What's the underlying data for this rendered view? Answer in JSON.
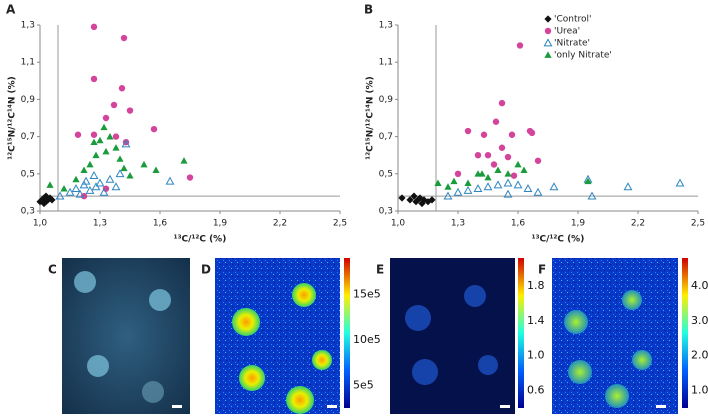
{
  "chart_data": [
    {
      "type": "scatter",
      "panel": "A",
      "xlabel": "¹³C/¹²C (%)",
      "ylabel": "¹²C¹⁵N/¹²C¹⁴N (%)",
      "xlim": [
        1.0,
        2.5
      ],
      "ylim": [
        0.3,
        1.3
      ],
      "xticks": [
        {
          "value": 1.0,
          "label": "1,0"
        },
        {
          "value": 1.3,
          "label": "1,3"
        },
        {
          "value": 1.6,
          "label": "1,6"
        },
        {
          "value": 1.9,
          "label": "1,9"
        },
        {
          "value": 2.2,
          "label": "2,2"
        },
        {
          "value": 2.5,
          "label": "2,5"
        }
      ],
      "yticks": [
        {
          "value": 0.3,
          "label": "0,3"
        },
        {
          "value": 0.5,
          "label": "0,5"
        },
        {
          "value": 0.7,
          "label": "0,7"
        },
        {
          "value": 0.9,
          "label": "0,9"
        },
        {
          "value": 1.1,
          "label": "1,1"
        },
        {
          "value": 1.3,
          "label": "1,3"
        }
      ],
      "vlines": [
        1.09
      ],
      "hlines": [
        0.38
      ],
      "series": [
        {
          "marker": "diamond",
          "color": "#111111",
          "x": [
            1.01,
            1.02,
            1.03,
            1.04,
            1.05,
            1.02,
            1.06,
            1.03,
            1.0
          ],
          "y": [
            0.36,
            0.37,
            0.35,
            0.36,
            0.37,
            0.34,
            0.36,
            0.38,
            0.35
          ]
        },
        {
          "marker": "circle",
          "color": "#d4449a",
          "x": [
            1.27,
            1.42,
            1.27,
            1.41,
            1.37,
            1.45,
            1.33,
            1.19,
            1.27,
            1.38,
            1.57,
            1.43,
            1.75,
            1.22,
            1.33
          ],
          "y": [
            1.29,
            1.23,
            1.01,
            0.96,
            0.87,
            0.84,
            0.8,
            0.71,
            0.71,
            0.7,
            0.74,
            0.67,
            0.48,
            0.38,
            0.42
          ]
        },
        {
          "marker": "triangle-open",
          "color": "#2e86c1",
          "x": [
            1.1,
            1.15,
            1.18,
            1.2,
            1.22,
            1.25,
            1.28,
            1.3,
            1.32,
            1.35,
            1.38,
            1.4,
            1.43,
            1.65,
            1.27,
            1.23
          ],
          "y": [
            0.38,
            0.4,
            0.42,
            0.39,
            0.44,
            0.41,
            0.43,
            0.45,
            0.4,
            0.47,
            0.43,
            0.5,
            0.66,
            0.46,
            0.49,
            0.46
          ]
        },
        {
          "marker": "triangle",
          "color": "#1a9b3c",
          "x": [
            1.05,
            1.12,
            1.18,
            1.22,
            1.25,
            1.28,
            1.3,
            1.32,
            1.35,
            1.38,
            1.4,
            1.42,
            1.45,
            1.52,
            1.58,
            1.72,
            1.27,
            1.33
          ],
          "y": [
            0.44,
            0.42,
            0.47,
            0.52,
            0.55,
            0.6,
            0.68,
            0.75,
            0.7,
            0.64,
            0.58,
            0.53,
            0.49,
            0.55,
            0.52,
            0.57,
            0.67,
            0.62
          ]
        }
      ]
    },
    {
      "type": "scatter",
      "panel": "B",
      "xlabel": "¹³C/¹²C (%)",
      "ylabel": "¹²C¹⁵N/¹²C¹⁴N (%)",
      "xlim": [
        1.0,
        2.5
      ],
      "ylim": [
        0.3,
        1.3
      ],
      "xticks": [
        {
          "value": 1.0,
          "label": "1,0"
        },
        {
          "value": 1.3,
          "label": "1,3"
        },
        {
          "value": 1.6,
          "label": "1,6"
        },
        {
          "value": 1.9,
          "label": "1,9"
        },
        {
          "value": 2.2,
          "label": "2,2"
        },
        {
          "value": 2.5,
          "label": "2,5"
        }
      ],
      "yticks": [
        {
          "value": 0.3,
          "label": "0,3"
        },
        {
          "value": 0.5,
          "label": "0,5"
        },
        {
          "value": 0.7,
          "label": "0,7"
        },
        {
          "value": 0.9,
          "label": "0,9"
        },
        {
          "value": 1.1,
          "label": "1,1"
        },
        {
          "value": 1.3,
          "label": "1,3"
        }
      ],
      "vlines": [
        1.19
      ],
      "hlines": [
        0.38
      ],
      "legend": "upper right",
      "series": [
        {
          "name": "'Control'",
          "marker": "diamond",
          "color": "#111111",
          "x": [
            1.02,
            1.06,
            1.09,
            1.11,
            1.13,
            1.15,
            1.08,
            1.12,
            1.17,
            1.1
          ],
          "y": [
            0.37,
            0.36,
            0.35,
            0.37,
            0.36,
            0.35,
            0.38,
            0.34,
            0.36,
            0.36
          ]
        },
        {
          "name": "'Urea'",
          "marker": "circle",
          "color": "#d4449a",
          "x": [
            1.61,
            1.52,
            1.49,
            1.35,
            1.43,
            1.57,
            1.66,
            1.67,
            1.52,
            1.4,
            1.45,
            1.55,
            1.7,
            1.3,
            1.48,
            1.58
          ],
          "y": [
            1.19,
            0.88,
            0.78,
            0.73,
            0.71,
            0.71,
            0.73,
            0.72,
            0.64,
            0.6,
            0.6,
            0.59,
            0.57,
            0.5,
            0.55,
            0.49
          ]
        },
        {
          "name": "'Nitrate'",
          "marker": "triangle-open",
          "color": "#2e86c1",
          "x": [
            1.25,
            1.3,
            1.35,
            1.4,
            1.45,
            1.5,
            1.55,
            1.6,
            1.65,
            1.7,
            1.78,
            1.95,
            1.97,
            2.15,
            2.41,
            1.55
          ],
          "y": [
            0.38,
            0.4,
            0.41,
            0.42,
            0.43,
            0.44,
            0.45,
            0.44,
            0.42,
            0.4,
            0.43,
            0.47,
            0.38,
            0.43,
            0.45,
            0.39
          ]
        },
        {
          "name": "'only Nitrate'",
          "marker": "triangle",
          "color": "#1a9b3c",
          "x": [
            1.2,
            1.25,
            1.28,
            1.35,
            1.4,
            1.45,
            1.5,
            1.55,
            1.6,
            1.63,
            1.95,
            1.42
          ],
          "y": [
            0.45,
            0.43,
            0.46,
            0.45,
            0.5,
            0.48,
            0.52,
            0.5,
            0.55,
            0.52,
            0.46,
            0.5
          ]
        }
      ]
    }
  ],
  "panels": [
    {
      "label": "C"
    },
    {
      "label": "D",
      "colorbar": [
        "15e5",
        "10e5",
        "5e5"
      ]
    },
    {
      "label": "E",
      "colorbar": [
        "1.8",
        "1.4",
        "1.0",
        "0.6"
      ]
    },
    {
      "label": "F",
      "colorbar": [
        "4.0",
        "3.0",
        "2.0",
        "1.0"
      ]
    }
  ]
}
